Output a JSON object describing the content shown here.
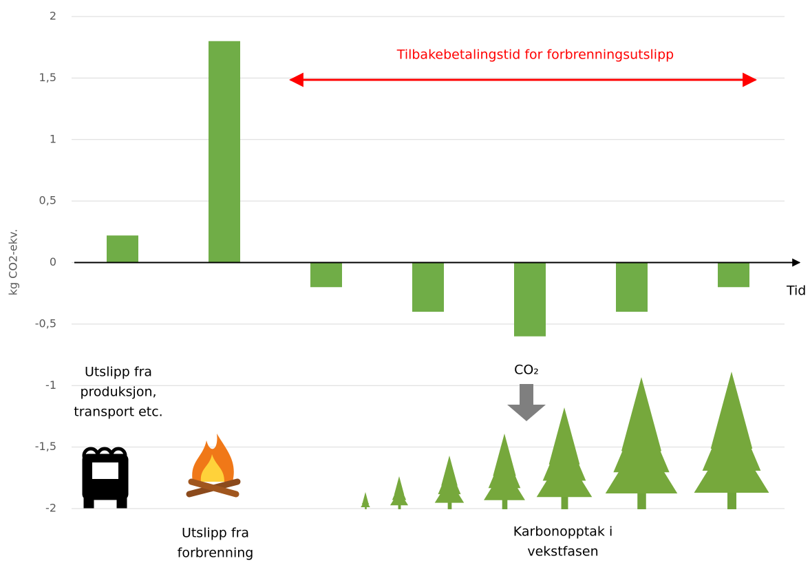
{
  "chart_data": {
    "type": "bar",
    "y_label": "kg CO2-ekv.",
    "categories": [
      null,
      null,
      null,
      null,
      null,
      null,
      null
    ],
    "values": [
      0.22,
      1.8,
      -0.2,
      -0.4,
      -0.6,
      -0.4,
      -0.2
    ],
    "color": "#70ad47",
    "ylim": [
      -2,
      2
    ],
    "yticks": [
      -2,
      {
        "value": -1.5,
        "label": "-1,5"
      },
      -1,
      {
        "value": -0.5,
        "label": "-0,5"
      },
      0,
      {
        "value": 0.5,
        "label": "0,5"
      },
      1,
      {
        "value": 1.5,
        "label": "1,5"
      },
      2
    ],
    "grid": true,
    "annotations": {
      "payback": "Tilbakebetalingstid for forbrenningsutslipp",
      "time_axis": "Tid",
      "production": [
        "Utslipp fra",
        "produksjon,",
        "transport etc."
      ],
      "combustion": [
        "Utslipp fra",
        "forbrenning"
      ],
      "uptake": [
        "Karbonopptak i",
        "vekstfasen"
      ],
      "co2": "CO₂"
    }
  }
}
